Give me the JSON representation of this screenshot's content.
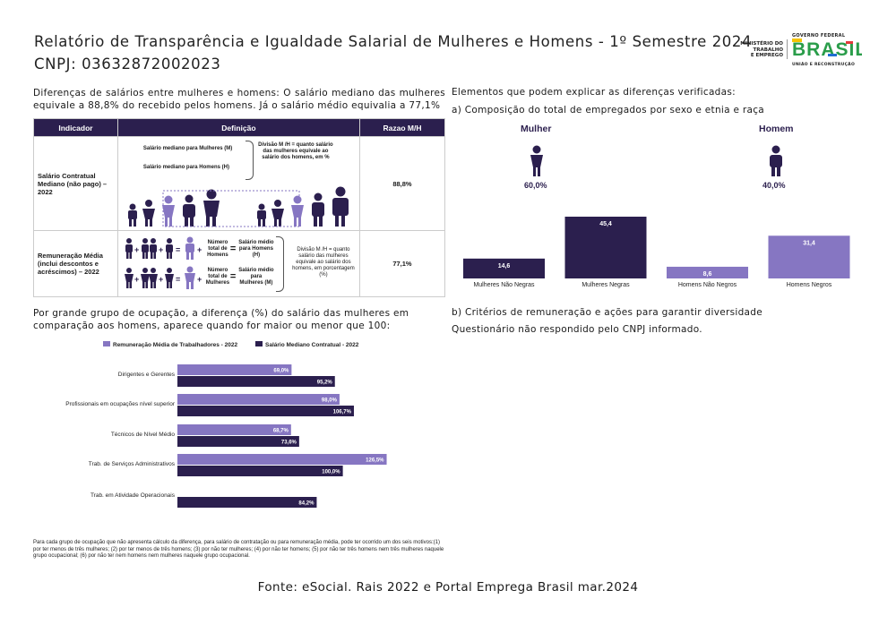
{
  "header": {
    "title": "Relatório de Transparência e Igualdade Salarial de Mulheres e Homens - 1º Semestre 2024",
    "cnpj": "CNPJ: 03632872002023",
    "ministry": [
      "MINISTÉRIO DO",
      "TRABALHO",
      "E EMPREGO"
    ],
    "gov_top": "GOVERNO FEDERAL",
    "gov_brand": "BRASIL",
    "gov_bottom": "UNIÃO E RECONSTRUÇÃO"
  },
  "intro_text": "Diferenças de salários entre mulheres e homens: O salário mediano das mulheres equivale a 88,8% do recebido pelos homens. Já o salário médio equivalia a 77,1%",
  "indicator_table": {
    "headers": [
      "Indicador",
      "Definição",
      "Razao M/H"
    ],
    "rows": [
      {
        "indicator": "Salário Contratual Mediano (não pago) – 2022",
        "def_a": "Salário mediano para Mulheres (M)",
        "def_b": "Salário mediano para Homens (H)",
        "def_note": "Divisão M /H = quanto salário das mulheres equivale ao salário dos homens, em %",
        "ratio": "88,8%"
      },
      {
        "indicator": "Remuneração Média (inclui descontos e acréscimos) – 2022",
        "def_a_left": "Número total de Homens",
        "def_a_right": "Salário médio para Homens (H)",
        "def_b_left": "Número total de Mulheres",
        "def_b_right": "Salário médio para Mulheres (M)",
        "def_note": "Divisão M /H = quanto salário das mulheres equivale ao salário dos homens, em porcentagem (%)",
        "ratio": "77,1%"
      }
    ]
  },
  "right_section": {
    "heading": "Elementos que podem explicar as diferenças verificadas:",
    "subheading_a": "a) Composição do total de empregados por sexo e etnia e raça",
    "women_label": "Mulher",
    "women_pct": "60,0%",
    "men_label": "Homem",
    "men_pct": "40,0%",
    "subheading_b": "b) Critérios de remuneração e ações para garantir diversidade",
    "questionnaire": "Questionário não respondido pelo CNPJ informado."
  },
  "colors": {
    "dark": "#2b1f4e",
    "light": "#8676c2"
  },
  "chart_data": [
    {
      "type": "bar",
      "categories": [
        "Mulheres Não Negras",
        "Mulheres Negras",
        "Homens Não Negros",
        "Homens Negros"
      ],
      "values": [
        14.6,
        45.4,
        8.6,
        31.4
      ],
      "value_labels": [
        "14,6",
        "45,4",
        "8,6",
        "31,4"
      ],
      "bar_colors": [
        "#2b1f4e",
        "#2b1f4e",
        "#8676c2",
        "#8676c2"
      ],
      "ylim": [
        0,
        50
      ]
    },
    {
      "type": "bar",
      "orientation": "horizontal",
      "categories": [
        "Dirigentes e Gerentes",
        "Profissionais em ocupações nível superior",
        "Técnicos de Nível Médio",
        "Trab. de Serviços Administrativos",
        "Trab. em Atividade Operacionais"
      ],
      "series": [
        {
          "name": "Remuneração Média de Trabalhadores - 2022",
          "color": "#8676c2",
          "values": [
            69.0,
            98.0,
            68.7,
            126.5,
            null
          ],
          "labels": [
            "69,0%",
            "98,0%",
            "68,7%",
            "126,5%",
            ""
          ]
        },
        {
          "name": "Salário Mediano Contratual - 2022",
          "color": "#2b1f4e",
          "values": [
            95.2,
            106.7,
            73.6,
            100.0,
            84.2
          ],
          "labels": [
            "95,2%",
            "106,7%",
            "73,6%",
            "100,0%",
            "84,2%"
          ]
        }
      ],
      "xlim": [
        0,
        130
      ]
    }
  ],
  "occupation_heading": "Por grande grupo de ocupação, a diferença (%) do salário das mulheres em comparação aos homens, aparece quando for maior ou menor que 100:",
  "footnote": "Para cada grupo de ocupação que não apresenta cálculo da diferença, para salário de contratação ou para remuneração média, pode ter ocorrido um dos seis motivos:(1) por ter menos de três mulheres; (2) por ter menos de três homens; (3) por não ter mulheres; (4) por não ter homens; (5) por não ter três homens nem três mulheres naquele grupo ocupacional; (6) por não ter nem homens nem mulheres naquele grupo ocupacional.",
  "source": "Fonte: eSocial. Rais 2022 e Portal Emprega Brasil mar.2024"
}
